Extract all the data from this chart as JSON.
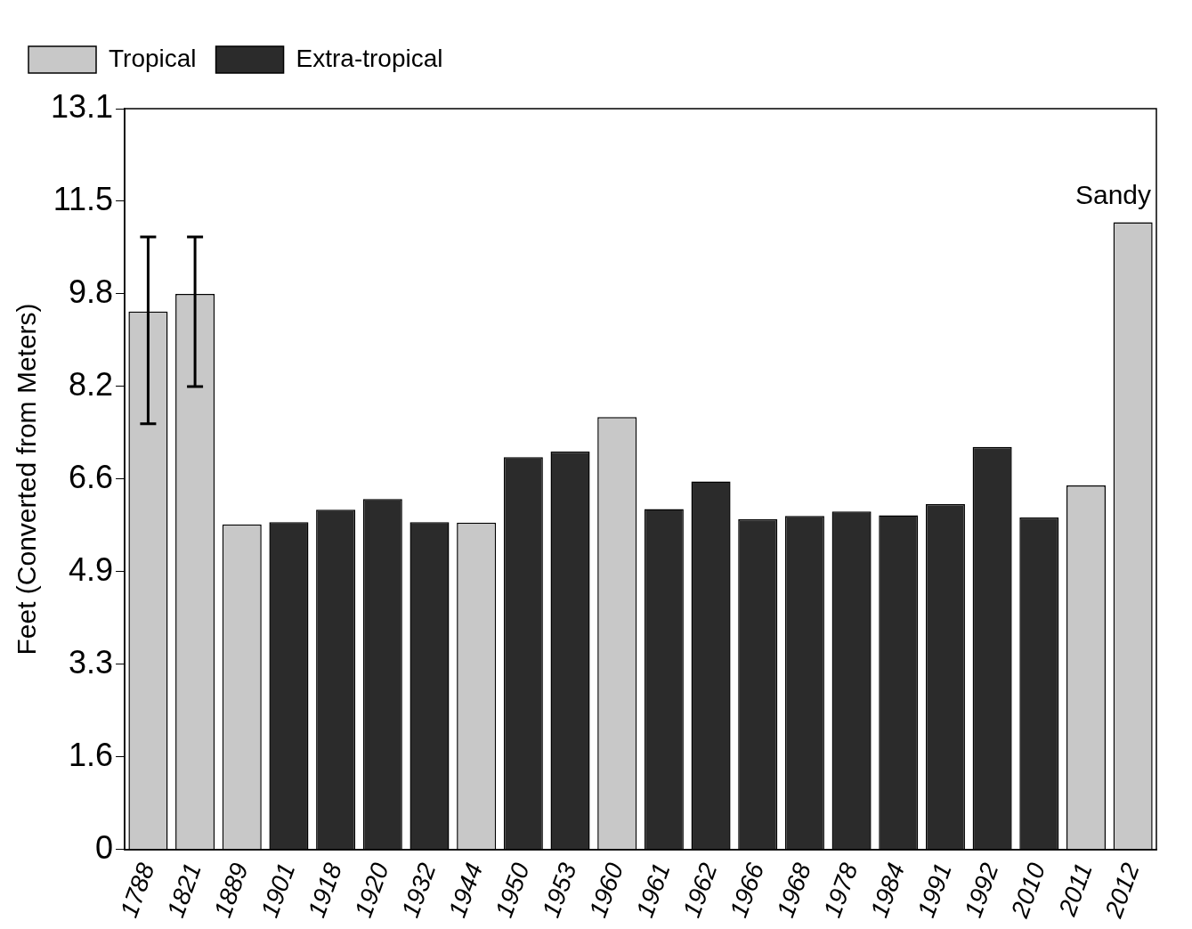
{
  "chart_data": {
    "type": "bar",
    "ylabel": "Feet (Converted from Meters)",
    "categories": [
      "1788",
      "1821",
      "1889",
      "1901",
      "1918",
      "1920",
      "1932",
      "1944",
      "1950",
      "1953",
      "1960",
      "1961",
      "1962",
      "1966",
      "1968",
      "1978",
      "1984",
      "1991",
      "1992",
      "2010",
      "2011",
      "2012"
    ],
    "series": [
      {
        "name": "Tropical",
        "color": "#c8c8c8",
        "values": [
          9.53,
          9.84,
          5.76,
          null,
          null,
          null,
          null,
          5.79,
          null,
          null,
          7.66,
          null,
          null,
          null,
          null,
          null,
          null,
          null,
          null,
          null,
          6.45,
          11.11
        ],
        "errors": [
          [
            7.54,
            10.85
          ],
          [
            8.2,
            10.85
          ],
          null,
          null,
          null,
          null,
          null,
          null,
          null,
          null,
          null,
          null,
          null,
          null,
          null,
          null,
          null,
          null,
          null,
          null,
          null,
          null
        ]
      },
      {
        "name": "Extra-tropical",
        "color": "#2b2b2b",
        "values": [
          null,
          null,
          null,
          5.8,
          6.02,
          6.21,
          5.8,
          null,
          6.95,
          7.05,
          null,
          6.03,
          6.52,
          5.85,
          5.91,
          5.99,
          5.92,
          6.12,
          7.13,
          5.88,
          null,
          null
        ]
      }
    ],
    "ylim": [
      0,
      13.12
    ],
    "yticks": [
      0,
      {
        "value": 1.64,
        "label": "1.6"
      },
      {
        "value": 3.28,
        "label": "3.3"
      },
      {
        "value": 4.92,
        "label": "4.9"
      },
      {
        "value": 6.56,
        "label": "6.6"
      },
      {
        "value": 8.2,
        "label": "8.2"
      },
      {
        "value": 9.84,
        "label": "9.8"
      },
      {
        "value": 11.48,
        "label": "11.5"
      },
      {
        "value": 13.12,
        "label": "13.1"
      }
    ],
    "annotations": [
      {
        "text": "Sandy",
        "x": "2012",
        "y": 11.11
      }
    ],
    "legend": "top left",
    "grid": false
  }
}
